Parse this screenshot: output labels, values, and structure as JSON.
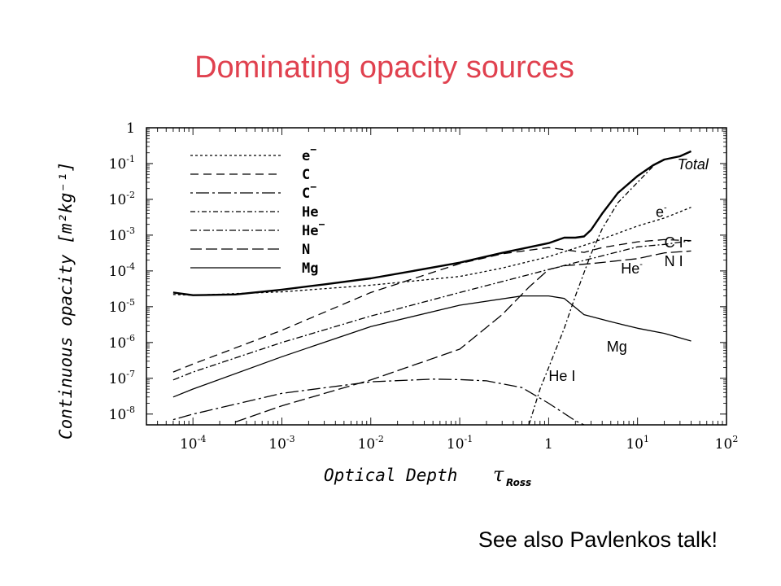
{
  "slide": {
    "title": "Dominating opacity sources",
    "footer": "See also Pavlenkos talk!",
    "title_color": "#e0414f"
  },
  "chart_data": {
    "type": "line",
    "x_scale": "log",
    "y_scale": "log",
    "xlim": [
      3e-05,
      100
    ],
    "ylim": [
      5e-09,
      1
    ],
    "xlabel": {
      "text": "Optical Depth",
      "symbol": "τ",
      "subscript": "Ross"
    },
    "ylabel": "Continuous opacity [m²kg⁻¹]",
    "x_ticks": [
      {
        "value": 0.0001,
        "base": "10",
        "exp": "-4"
      },
      {
        "value": 0.001,
        "base": "10",
        "exp": "-3"
      },
      {
        "value": 0.01,
        "base": "10",
        "exp": "-2"
      },
      {
        "value": 0.1,
        "base": "10",
        "exp": "-1"
      },
      {
        "value": 1,
        "base": "1",
        "exp": ""
      },
      {
        "value": 10,
        "base": "10",
        "exp": "1"
      },
      {
        "value": 100,
        "base": "10",
        "exp": "2"
      }
    ],
    "y_ticks": [
      {
        "value": 1,
        "base": "1",
        "exp": ""
      },
      {
        "value": 0.1,
        "base": "10",
        "exp": "-1"
      },
      {
        "value": 0.01,
        "base": "10",
        "exp": "-2"
      },
      {
        "value": 0.001,
        "base": "10",
        "exp": "-3"
      },
      {
        "value": 0.0001,
        "base": "10",
        "exp": "-4"
      },
      {
        "value": 1e-05,
        "base": "10",
        "exp": "-5"
      },
      {
        "value": 1e-06,
        "base": "10",
        "exp": "-6"
      },
      {
        "value": 1e-07,
        "base": "10",
        "exp": "-7"
      },
      {
        "value": 1e-08,
        "base": "10",
        "exp": "-8"
      }
    ],
    "legend": [
      {
        "label": "e",
        "sup": "−",
        "dash": "3,3"
      },
      {
        "label": "C",
        "sup": "",
        "dash": "10,6"
      },
      {
        "label": "C",
        "sup": "−",
        "dash": "3,4,16,4"
      },
      {
        "label": "He",
        "sup": "",
        "dash": "6,3,2,3"
      },
      {
        "label": "He",
        "sup": "−",
        "dash": "8,3,2,3"
      },
      {
        "label": "N",
        "sup": "",
        "dash": "14,5"
      },
      {
        "label": "Mg",
        "sup": "",
        "dash": "none"
      }
    ],
    "series": [
      {
        "key": "total",
        "dash": "none",
        "width": 2.4,
        "x": [
          6e-05,
          0.0001,
          0.0003,
          0.001,
          0.003,
          0.01,
          0.03,
          0.1,
          0.3,
          1,
          1.5,
          2,
          2.5,
          3,
          4,
          6,
          10,
          15,
          20,
          30,
          40
        ],
        "y": [
          2.5e-05,
          2.1e-05,
          2.2e-05,
          3e-05,
          4.2e-05,
          6.2e-05,
          0.0001,
          0.00017,
          0.00032,
          0.0006,
          0.00085,
          0.00085,
          0.00092,
          0.0014,
          0.004,
          0.015,
          0.045,
          0.09,
          0.13,
          0.16,
          0.22
        ]
      },
      {
        "key": "e_minus",
        "dash": "3,3",
        "width": 1.3,
        "x": [
          6e-05,
          0.0001,
          0.001,
          0.01,
          0.1,
          0.3,
          1,
          3,
          10,
          20,
          40
        ],
        "y": [
          2.2e-05,
          2.1e-05,
          2.6e-05,
          4e-05,
          7e-05,
          0.00012,
          0.00025,
          0.0006,
          0.0018,
          0.003,
          0.006
        ]
      },
      {
        "key": "C_I",
        "dash": "10,6",
        "width": 1.3,
        "x": [
          6e-05,
          0.0001,
          0.001,
          0.01,
          0.1,
          0.3,
          1,
          2.5,
          4,
          10,
          20,
          40
        ],
        "y": [
          1.5e-07,
          2.5e-07,
          2.2e-06,
          2.5e-05,
          0.00016,
          0.0003,
          0.00045,
          0.00033,
          0.00045,
          0.00065,
          0.00075,
          0.0007
        ]
      },
      {
        "key": "He_minus",
        "dash": "8,3,2,3",
        "width": 1.3,
        "x": [
          6e-05,
          0.0001,
          0.001,
          0.01,
          0.1,
          1,
          3,
          10,
          20,
          40
        ],
        "y": [
          9e-08,
          1.5e-07,
          1e-06,
          5.5e-06,
          2.5e-05,
          0.00011,
          0.00022,
          0.00047,
          0.00055,
          0.0007
        ]
      },
      {
        "key": "N_I",
        "dash": "14,5",
        "width": 1.3,
        "x": [
          0.0003,
          0.001,
          0.01,
          0.1,
          0.3,
          0.6,
          1,
          1.5,
          3,
          10,
          20,
          40
        ],
        "y": [
          6e-09,
          1.7e-08,
          9e-08,
          6.5e-07,
          6e-06,
          3.5e-05,
          0.00011,
          0.00014,
          0.00016,
          0.00022,
          0.00032,
          0.00036
        ]
      },
      {
        "key": "C_minus",
        "dash": "3,4,16,4",
        "width": 1.3,
        "x": [
          6e-05,
          0.0001,
          0.001,
          0.01,
          0.05,
          0.1,
          0.2,
          0.5,
          1,
          2,
          2.5
        ],
        "y": [
          7e-09,
          1e-08,
          3.8e-08,
          8e-08,
          9.5e-08,
          9.2e-08,
          8.5e-08,
          5.5e-08,
          2e-08,
          6.5e-09,
          5e-09
        ]
      },
      {
        "key": "He_I",
        "dash": "6,3,2,3",
        "width": 1.3,
        "x": [
          0.6,
          0.8,
          1,
          1.5,
          2,
          3,
          4,
          6,
          10,
          16,
          20
        ],
        "y": [
          5e-09,
          5e-08,
          2e-07,
          2.5e-06,
          2e-05,
          0.0003,
          0.0015,
          0.008,
          0.03,
          0.1,
          0.13
        ]
      },
      {
        "key": "Mg",
        "dash": "none",
        "width": 1.3,
        "x": [
          6e-05,
          0.0001,
          0.001,
          0.01,
          0.1,
          0.5,
          1,
          1.5,
          2.5,
          5,
          10,
          20,
          40
        ],
        "y": [
          3e-08,
          5e-08,
          4e-07,
          2.8e-06,
          1.1e-05,
          2e-05,
          2e-05,
          1.7e-05,
          6e-06,
          3.8e-06,
          2.5e-06,
          1.8e-06,
          1.1e-06
        ]
      }
    ],
    "annotations": [
      {
        "key": "total",
        "text": "Total",
        "x": 28,
        "y": 0.07,
        "italic": true
      },
      {
        "key": "e",
        "text": "e",
        "sup": "-",
        "x": 16,
        "y": 0.0032
      },
      {
        "key": "CI",
        "text": "C I",
        "x": 20,
        "y": 0.00045
      },
      {
        "key": "NI",
        "text": "N I",
        "x": 20,
        "y": 0.000135
      },
      {
        "key": "Heminus",
        "text": "He",
        "sup": "-",
        "x": 6.5,
        "y": 8.5e-05
      },
      {
        "key": "Mg",
        "text": "Mg",
        "x": 4.5,
        "y": 5.5e-07
      },
      {
        "key": "HeI",
        "text": "He I",
        "x": 1,
        "y": 8.5e-08
      }
    ]
  }
}
